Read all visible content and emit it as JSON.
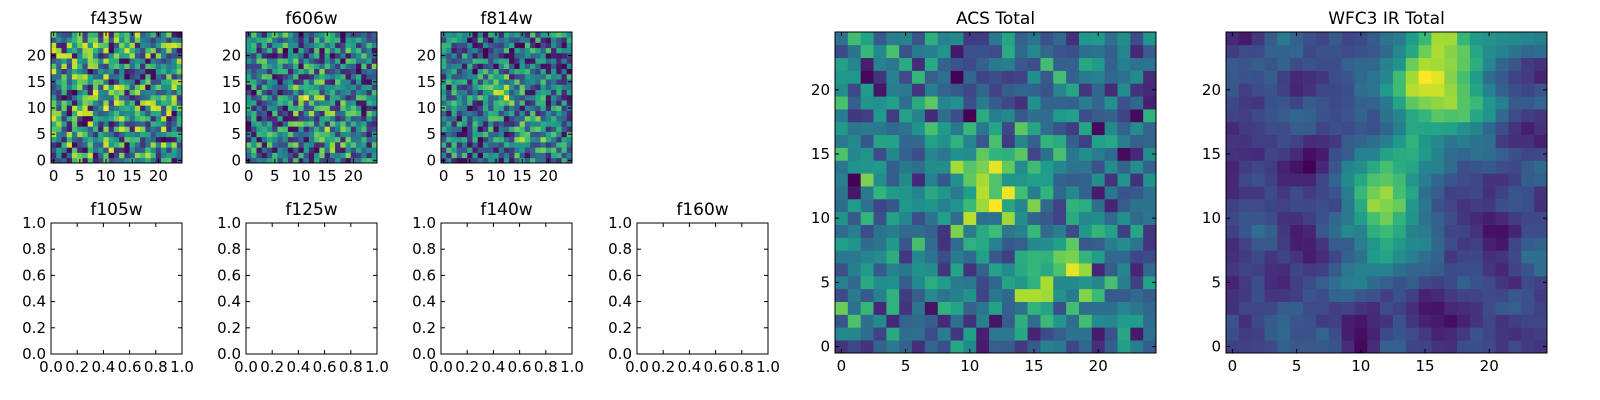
{
  "chart_data": [
    {
      "type": "heatmap",
      "title": "f435w",
      "colormap": "viridis",
      "size": [
        25,
        25
      ],
      "origin": "lower",
      "xticks": [
        0,
        5,
        10,
        15,
        20
      ],
      "yticks": [
        0,
        5,
        10,
        15,
        20
      ],
      "xlim": [
        -0.5,
        24.5
      ],
      "ylim": [
        -0.5,
        24.5
      ]
    },
    {
      "type": "heatmap",
      "title": "f606w",
      "colormap": "viridis",
      "size": [
        25,
        25
      ],
      "origin": "lower",
      "xticks": [
        0,
        5,
        10,
        15,
        20
      ],
      "yticks": [
        0,
        5,
        10,
        15,
        20
      ],
      "xlim": [
        -0.5,
        24.5
      ],
      "ylim": [
        -0.5,
        24.5
      ]
    },
    {
      "type": "heatmap",
      "title": "f814w",
      "colormap": "viridis",
      "size": [
        25,
        25
      ],
      "origin": "lower",
      "xticks": [
        0,
        5,
        10,
        15,
        20
      ],
      "yticks": [
        0,
        5,
        10,
        15,
        20
      ],
      "xlim": [
        -0.5,
        24.5
      ],
      "ylim": [
        -0.5,
        24.5
      ]
    },
    {
      "type": "empty",
      "title": "f105w",
      "xticks": [
        "0.0",
        "0.2",
        "0.4",
        "0.6",
        "0.8",
        "1.0"
      ],
      "yticks": [
        "0.0",
        "0.2",
        "0.4",
        "0.6",
        "0.8",
        "1.0"
      ],
      "xlim": [
        0,
        1
      ],
      "ylim": [
        0,
        1
      ]
    },
    {
      "type": "empty",
      "title": "f125w",
      "xticks": [
        "0.0",
        "0.2",
        "0.4",
        "0.6",
        "0.8",
        "1.0"
      ],
      "yticks": [
        "0.0",
        "0.2",
        "0.4",
        "0.6",
        "0.8",
        "1.0"
      ],
      "xlim": [
        0,
        1
      ],
      "ylim": [
        0,
        1
      ]
    },
    {
      "type": "empty",
      "title": "f140w",
      "xticks": [
        "0.0",
        "0.2",
        "0.4",
        "0.6",
        "0.8",
        "1.0"
      ],
      "yticks": [
        "0.0",
        "0.2",
        "0.4",
        "0.6",
        "0.8",
        "1.0"
      ],
      "xlim": [
        0,
        1
      ],
      "ylim": [
        0,
        1
      ]
    },
    {
      "type": "empty",
      "title": "f160w",
      "xticks": [
        "0.0",
        "0.2",
        "0.4",
        "0.6",
        "0.8",
        "1.0"
      ],
      "yticks": [
        "0.0",
        "0.2",
        "0.4",
        "0.6",
        "0.8",
        "1.0"
      ],
      "xlim": [
        0,
        1
      ],
      "ylim": [
        0,
        1
      ]
    },
    {
      "type": "heatmap",
      "title": "ACS Total",
      "colormap": "viridis",
      "size": [
        25,
        25
      ],
      "origin": "lower",
      "xticks": [
        0,
        5,
        10,
        15,
        20
      ],
      "yticks": [
        0,
        5,
        10,
        15,
        20
      ],
      "xlim": [
        -0.5,
        24.5
      ],
      "ylim": [
        -0.5,
        24.5
      ]
    },
    {
      "type": "heatmap",
      "title": "WFC3 IR Total",
      "colormap": "viridis",
      "size": [
        25,
        25
      ],
      "origin": "lower",
      "xticks": [
        0,
        5,
        10,
        15,
        20
      ],
      "yticks": [
        0,
        5,
        10,
        15,
        20
      ],
      "xlim": [
        -0.5,
        24.5
      ],
      "ylim": [
        -0.5,
        24.5
      ]
    }
  ]
}
